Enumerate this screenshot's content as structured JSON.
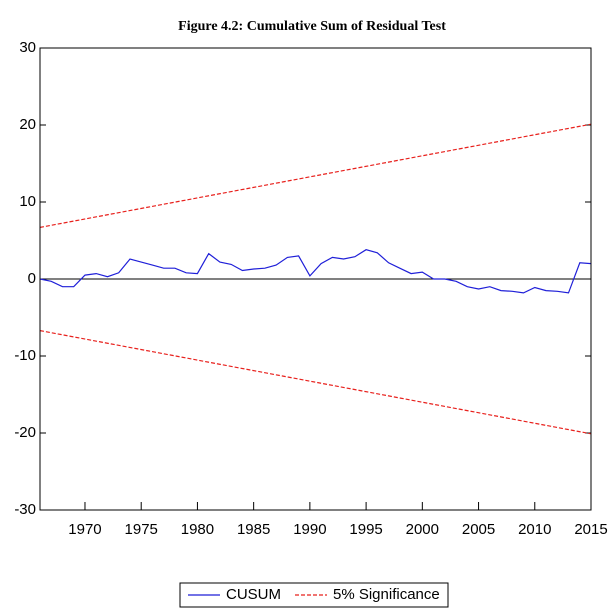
{
  "chart_data": {
    "type": "line",
    "title": "Figure 4.2: Cumulative Sum of Residual Test",
    "x": [
      1966,
      1967,
      1968,
      1969,
      1970,
      1971,
      1972,
      1973,
      1974,
      1975,
      1976,
      1977,
      1978,
      1979,
      1980,
      1981,
      1982,
      1983,
      1984,
      1985,
      1986,
      1987,
      1988,
      1989,
      1990,
      1991,
      1992,
      1993,
      1994,
      1995,
      1996,
      1997,
      1998,
      1999,
      2000,
      2001,
      2002,
      2003,
      2004,
      2005,
      2006,
      2007,
      2008,
      2009,
      2010,
      2011,
      2012,
      2013,
      2014,
      2015
    ],
    "series": [
      {
        "name": "CUSUM",
        "color": "#1f1fd8",
        "values": [
          0,
          -0.3,
          -1,
          -1,
          0.5,
          0.7,
          0.3,
          0.8,
          2.6,
          2.2,
          1.8,
          1.4,
          1.4,
          0.8,
          0.7,
          3.3,
          2.2,
          1.9,
          1.1,
          1.3,
          1.4,
          1.8,
          2.8,
          3.0,
          0.4,
          2.0,
          2.8,
          2.6,
          2.9,
          3.8,
          3.4,
          2.1,
          1.4,
          0.7,
          0.9,
          0.0,
          0.0,
          -0.3,
          -1.0,
          -1.3,
          -1.0,
          -1.5,
          -1.6,
          -1.8,
          -1.1,
          -1.5,
          -1.6,
          -1.8,
          2.1,
          2.0
        ]
      },
      {
        "name": "5% Significance",
        "color": "#e8201c",
        "dashed": true,
        "x": [
          1966,
          2015
        ],
        "upper": [
          6.7,
          20.1
        ],
        "lower": [
          -6.7,
          -20.1
        ]
      }
    ],
    "xlim": [
      1966,
      2015
    ],
    "xticks": [
      1970,
      1975,
      1980,
      1985,
      1990,
      1995,
      2000,
      2005,
      2010,
      2015
    ],
    "ylim": [
      -30,
      30
    ],
    "yticks": [
      30,
      20,
      10,
      0,
      -10,
      -20,
      -30
    ],
    "zero_line": true
  }
}
